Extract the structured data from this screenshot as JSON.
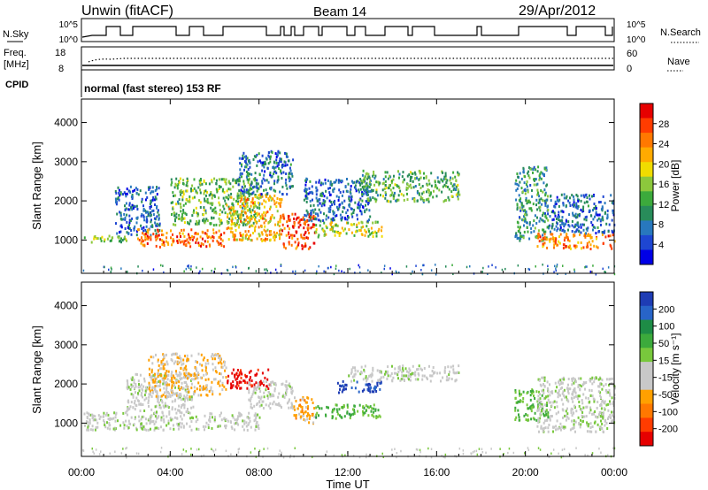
{
  "header": {
    "station": "Unwin (fitACF)",
    "beam": "Beam 14",
    "date": "29/Apr/2012"
  },
  "status_strips": {
    "nsky_label": "N.Sky",
    "nsearch_label": "N.Search",
    "nsky_ticks": [
      "10^5",
      "10^0"
    ],
    "nsearch_ticks": [
      "10^5",
      "10^0"
    ],
    "freq_label_line1": "Freq.",
    "freq_label_line2": "[MHz]",
    "freq_ticks": [
      "18",
      "8"
    ],
    "nave_label": "Nave",
    "nave_ticks": [
      "60",
      "0"
    ],
    "cpid_label": "CPID",
    "cpid_text": "normal (fast stereo) 153 RF"
  },
  "colors": {
    "power": [
      "#0000e6",
      "#1e46d2",
      "#2878be",
      "#288c5a",
      "#3caa3c",
      "#8cc83c",
      "#f0dc00",
      "#ffaa00",
      "#ff7800",
      "#ff3c00",
      "#e60000"
    ],
    "velocity": [
      "#1e3cb4",
      "#2864c8",
      "#1e8c46",
      "#3caa3c",
      "#78c83c",
      "#c8c8c8",
      "#c8c8c8",
      "#ffa000",
      "#ff7800",
      "#ff3c00",
      "#e60000"
    ]
  },
  "chart_data": [
    {
      "type": "heatmap",
      "name": "Power panel",
      "xlabel": "",
      "ylabel": "Slant Range [km]",
      "xlim": [
        0,
        24
      ],
      "ylim": [
        150,
        4600
      ],
      "x_ticks": [
        "00:00",
        "04:00",
        "08:00",
        "12:00",
        "16:00",
        "20:00",
        "00:00"
      ],
      "y_ticks": [
        "1000",
        "2000",
        "3000",
        "4000"
      ],
      "colorbar": {
        "label": "Power [dB]",
        "ticks": [
          "4",
          "8",
          "12",
          "16",
          "20",
          "24",
          "28"
        ],
        "range": [
          0,
          30
        ]
      },
      "echo_bands": [
        {
          "t_start": 0.1,
          "t_end": 2.0,
          "range_low": 950,
          "range_high": 1150,
          "value": 14
        },
        {
          "t_start": 1.5,
          "t_end": 3.5,
          "range_low": 1150,
          "range_high": 2400,
          "value": 6
        },
        {
          "t_start": 2.5,
          "t_end": 6.5,
          "range_low": 850,
          "range_high": 1300,
          "value": 24
        },
        {
          "t_start": 4.0,
          "t_end": 8.0,
          "range_low": 1400,
          "range_high": 2600,
          "value": 13
        },
        {
          "t_start": 6.5,
          "t_end": 9.0,
          "range_low": 1000,
          "range_high": 2200,
          "value": 20
        },
        {
          "t_start": 7.0,
          "t_end": 9.5,
          "range_low": 2200,
          "range_high": 3300,
          "value": 7
        },
        {
          "t_start": 9.0,
          "t_end": 10.5,
          "range_low": 800,
          "range_high": 1700,
          "value": 26
        },
        {
          "t_start": 10.5,
          "t_end": 13.5,
          "range_low": 1100,
          "range_high": 1500,
          "value": 16
        },
        {
          "t_start": 10.0,
          "t_end": 13.0,
          "range_low": 1500,
          "range_high": 2600,
          "value": 6
        },
        {
          "t_start": 12.5,
          "t_end": 17.0,
          "range_low": 2000,
          "range_high": 2800,
          "value": 12
        },
        {
          "t_start": 19.5,
          "t_end": 21.0,
          "range_low": 1000,
          "range_high": 2900,
          "value": 10
        },
        {
          "t_start": 20.5,
          "t_end": 24.0,
          "range_low": 800,
          "range_high": 1200,
          "value": 23
        },
        {
          "t_start": 21.0,
          "t_end": 24.0,
          "range_low": 1200,
          "range_high": 2200,
          "value": 6
        }
      ]
    },
    {
      "type": "heatmap",
      "name": "Velocity panel",
      "xlabel": "Time UT",
      "ylabel": "Slant Range [km]",
      "xlim": [
        0,
        24
      ],
      "ylim": [
        150,
        4600
      ],
      "x_ticks": [
        "00:00",
        "04:00",
        "08:00",
        "12:00",
        "16:00",
        "20:00",
        "00:00"
      ],
      "y_ticks": [
        "1000",
        "2000",
        "3000",
        "4000"
      ],
      "colorbar": {
        "label": "Velocity [m s⁻¹]",
        "ticks": [
          "200",
          "100",
          "50",
          "15",
          "-15",
          "-50",
          "-100",
          "-200"
        ],
        "range": [
          -250,
          250
        ]
      },
      "echo_bands": [
        {
          "t_start": 0.1,
          "t_end": 8.0,
          "range_low": 850,
          "range_high": 1300,
          "value": 0
        },
        {
          "t_start": 2.0,
          "t_end": 5.0,
          "range_low": 1300,
          "range_high": 2300,
          "value": -5
        },
        {
          "t_start": 3.0,
          "t_end": 6.5,
          "range_low": 1700,
          "range_high": 2800,
          "value": -70
        },
        {
          "t_start": 6.5,
          "t_end": 8.5,
          "range_low": 1900,
          "range_high": 2400,
          "value": -230
        },
        {
          "t_start": 7.5,
          "t_end": 9.5,
          "range_low": 1400,
          "range_high": 2100,
          "value": -10
        },
        {
          "t_start": 9.5,
          "t_end": 10.5,
          "range_low": 1000,
          "range_high": 1700,
          "value": -80
        },
        {
          "t_start": 10.5,
          "t_end": 13.5,
          "range_low": 1150,
          "range_high": 1500,
          "value": 80
        },
        {
          "t_start": 11.5,
          "t_end": 13.5,
          "range_low": 1800,
          "range_high": 2100,
          "value": 220
        },
        {
          "t_start": 12.0,
          "t_end": 17.0,
          "range_low": 2100,
          "range_high": 2500,
          "value": 0
        },
        {
          "t_start": 19.5,
          "t_end": 21.0,
          "range_low": 1100,
          "range_high": 1900,
          "value": 70
        },
        {
          "t_start": 20.5,
          "t_end": 24.0,
          "range_low": 800,
          "range_high": 2200,
          "value": 0
        }
      ]
    }
  ]
}
